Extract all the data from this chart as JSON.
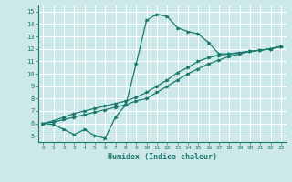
{
  "xlabel": "Humidex (Indice chaleur)",
  "bg_color": "#cce8e8",
  "grid_color": "#ffffff",
  "line_color": "#1a7a6e",
  "xlim": [
    -0.5,
    23.5
  ],
  "ylim": [
    4.5,
    15.5
  ],
  "xticks": [
    0,
    1,
    2,
    3,
    4,
    5,
    6,
    7,
    8,
    9,
    10,
    11,
    12,
    13,
    14,
    15,
    16,
    17,
    18,
    19,
    20,
    21,
    22,
    23
  ],
  "yticks": [
    5,
    6,
    7,
    8,
    9,
    10,
    11,
    12,
    13,
    14,
    15
  ],
  "line1_x": [
    0,
    1,
    2,
    3,
    4,
    5,
    6,
    7,
    8,
    9,
    10,
    11,
    12,
    13,
    14,
    15,
    16,
    17,
    18,
    19,
    20,
    21,
    22,
    23
  ],
  "line1_y": [
    6.0,
    5.9,
    5.5,
    5.1,
    5.5,
    5.0,
    4.8,
    6.5,
    7.5,
    10.8,
    14.3,
    14.8,
    14.6,
    13.7,
    13.4,
    13.2,
    12.5,
    11.6,
    11.6,
    11.7,
    11.8,
    11.9,
    12.0,
    12.2
  ],
  "line2_x": [
    0,
    1,
    2,
    3,
    4,
    5,
    6,
    7,
    8,
    9,
    10,
    11,
    12,
    13,
    14,
    15,
    16,
    17,
    18,
    19,
    20,
    21,
    22,
    23
  ],
  "line2_y": [
    6.0,
    6.1,
    6.3,
    6.5,
    6.7,
    6.9,
    7.1,
    7.3,
    7.5,
    7.8,
    8.0,
    8.5,
    9.0,
    9.5,
    10.0,
    10.4,
    10.8,
    11.1,
    11.4,
    11.6,
    11.8,
    11.9,
    12.0,
    12.2
  ],
  "line3_x": [
    0,
    1,
    2,
    3,
    4,
    5,
    6,
    7,
    8,
    9,
    10,
    11,
    12,
    13,
    14,
    15,
    16,
    17,
    18,
    19,
    20,
    21,
    22,
    23
  ],
  "line3_y": [
    6.0,
    6.2,
    6.5,
    6.8,
    7.0,
    7.2,
    7.4,
    7.6,
    7.8,
    8.1,
    8.5,
    9.0,
    9.5,
    10.1,
    10.5,
    11.0,
    11.3,
    11.5,
    11.6,
    11.7,
    11.8,
    11.9,
    12.0,
    12.2
  ]
}
